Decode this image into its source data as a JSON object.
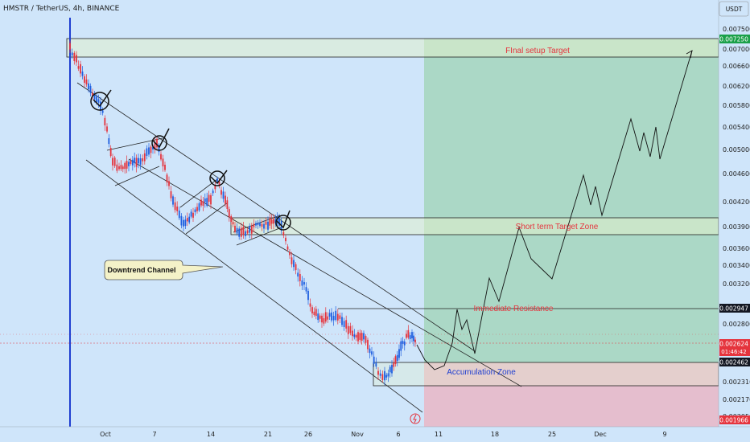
{
  "header": {
    "symbol_title": "HMSTR / TetherUS, 4h, BINANCE",
    "currency_button": "USDT"
  },
  "price_axis": {
    "ticks": [
      "0.007500",
      "0.007000",
      "0.006600",
      "0.006200",
      "0.005800",
      "0.005400",
      "0.005000",
      "0.004600",
      "0.004200",
      "0.003900",
      "0.003600",
      "0.003400",
      "0.003200",
      "0.002800",
      "0.002310",
      "0.002170",
      "0.002050"
    ]
  },
  "price_tags": {
    "target": "0.007250",
    "resistance": "0.002947",
    "current": "0.002624",
    "countdown": "01:46:42",
    "accumulation": "0.002462",
    "low": "0.001966"
  },
  "time_axis": {
    "labels": [
      "Oct",
      "7",
      "14",
      "21",
      "26",
      "Nov",
      "6",
      "11",
      "18",
      "25",
      "Dec",
      "9"
    ]
  },
  "annotations": {
    "final_target": "FInal setup Target",
    "short_term": "Short term Target Zone",
    "resistance": "Immediate Resistance",
    "accumulation": "Accumulation Zone",
    "callout": "Downtrend Channel"
  },
  "colors": {
    "background": "#cfe5fa",
    "up_candle": "#1f5fe0",
    "down_candle": "#e5343d",
    "target_zone": "#9fd3b4",
    "stop_zone": "#e9b7c6",
    "zone_box": "#e2f0cc",
    "annotation_red": "#e5343d",
    "annotation_blue": "#1f3fd0",
    "tag_green": "#1aa049",
    "tag_black": "#131722",
    "tag_red": "#e5343d"
  }
}
